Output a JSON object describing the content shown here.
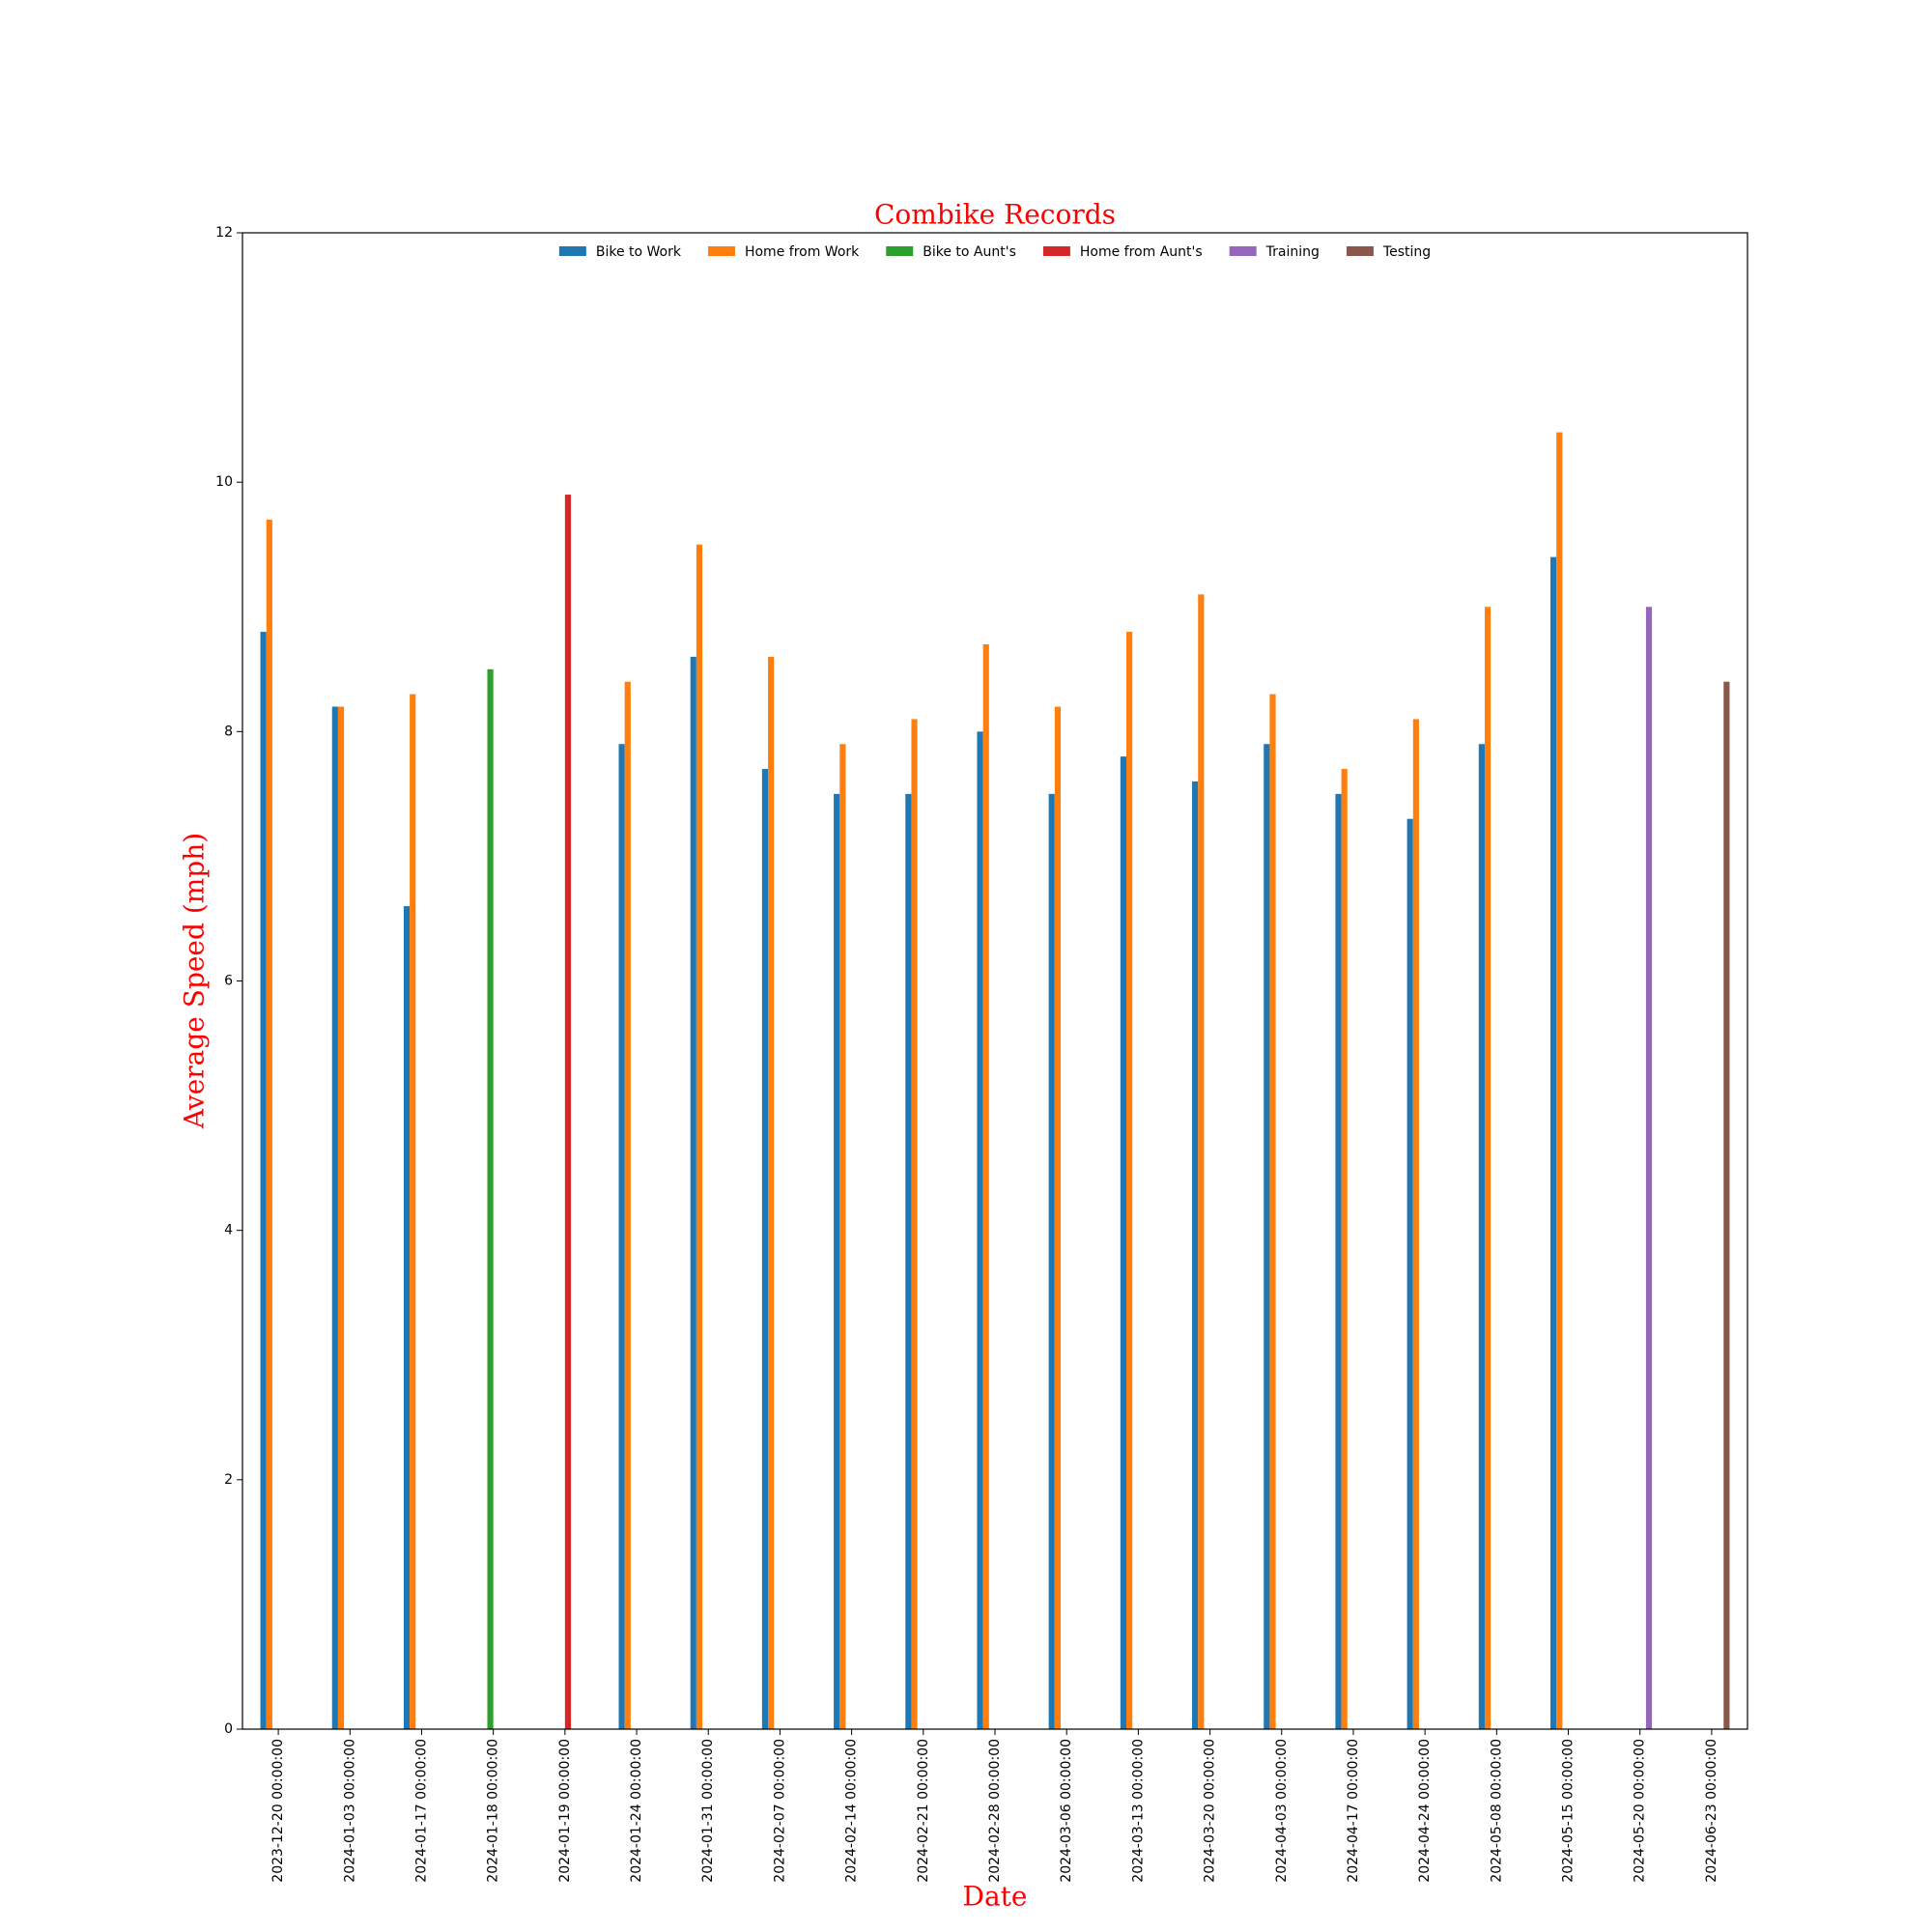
{
  "chart_data": {
    "type": "bar",
    "title": "Combike Records",
    "xlabel": "Date",
    "ylabel": "Average Speed (mph)",
    "categories": [
      "2023-12-20 00:00:00",
      "2024-01-03 00:00:00",
      "2024-01-17 00:00:00",
      "2024-01-18 00:00:00",
      "2024-01-19 00:00:00",
      "2024-01-24 00:00:00",
      "2024-01-31 00:00:00",
      "2024-02-07 00:00:00",
      "2024-02-14 00:00:00",
      "2024-02-21 00:00:00",
      "2024-02-28 00:00:00",
      "2024-03-06 00:00:00",
      "2024-03-13 00:00:00",
      "2024-03-20 00:00:00",
      "2024-04-03 00:00:00",
      "2024-04-17 00:00:00",
      "2024-04-24 00:00:00",
      "2024-05-08 00:00:00",
      "2024-05-15 00:00:00",
      "2024-05-20 00:00:00",
      "2024-06-23 00:00:00"
    ],
    "series": [
      {
        "name": "Bike to Work",
        "color": "#1f77b4",
        "values": [
          8.8,
          8.2,
          6.6,
          null,
          null,
          7.9,
          8.6,
          7.7,
          7.5,
          7.5,
          8.0,
          7.5,
          7.8,
          7.6,
          7.9,
          7.5,
          7.3,
          7.9,
          9.4,
          null,
          null
        ]
      },
      {
        "name": "Home from Work",
        "color": "#ff7f0e",
        "values": [
          9.7,
          8.2,
          8.3,
          null,
          null,
          8.4,
          9.5,
          8.6,
          7.9,
          8.1,
          8.7,
          8.2,
          8.8,
          9.1,
          8.3,
          7.7,
          8.1,
          9.0,
          10.4,
          null,
          null
        ]
      },
      {
        "name": "Bike to Aunt's",
        "color": "#2ca02c",
        "values": [
          null,
          null,
          null,
          8.5,
          null,
          null,
          null,
          null,
          null,
          null,
          null,
          null,
          null,
          null,
          null,
          null,
          null,
          null,
          null,
          null,
          null
        ]
      },
      {
        "name": "Home from Aunt's",
        "color": "#d62728",
        "values": [
          null,
          null,
          null,
          null,
          9.9,
          null,
          null,
          null,
          null,
          null,
          null,
          null,
          null,
          null,
          null,
          null,
          null,
          null,
          null,
          null,
          null
        ]
      },
      {
        "name": "Training",
        "color": "#9467bd",
        "values": [
          null,
          null,
          null,
          null,
          null,
          null,
          null,
          null,
          null,
          null,
          null,
          null,
          null,
          null,
          null,
          null,
          null,
          null,
          null,
          9.0,
          null
        ]
      },
      {
        "name": "Testing",
        "color": "#8c564b",
        "values": [
          null,
          null,
          null,
          null,
          null,
          null,
          null,
          null,
          null,
          null,
          null,
          null,
          null,
          null,
          null,
          null,
          null,
          null,
          null,
          null,
          8.4
        ]
      }
    ],
    "ylim": [
      0,
      12
    ],
    "yticks": [
      0,
      2,
      4,
      6,
      8,
      10,
      12
    ],
    "legend": "upper center",
    "grid": false
  }
}
